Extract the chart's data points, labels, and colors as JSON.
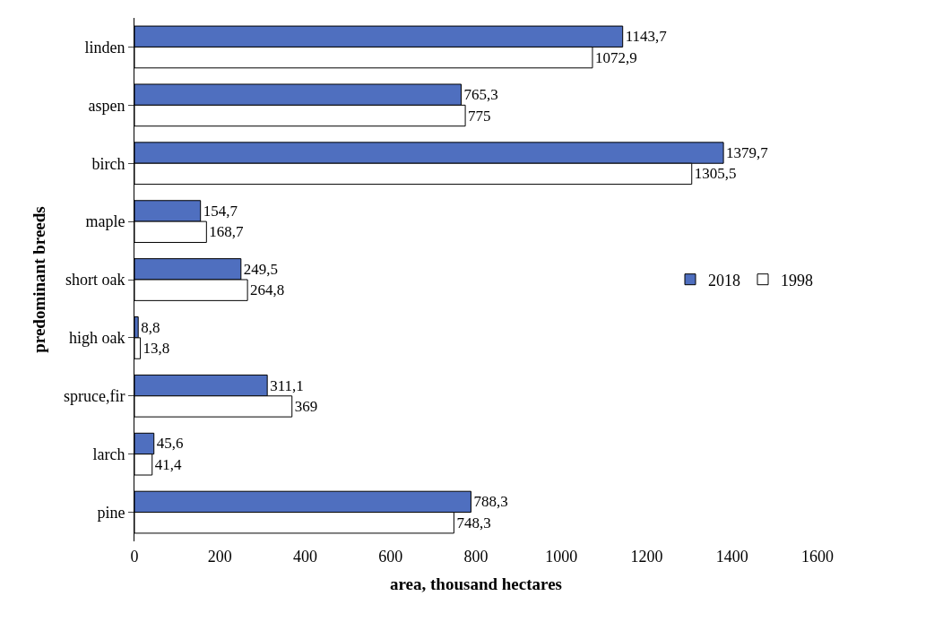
{
  "chart_data": {
    "type": "bar",
    "orientation": "horizontal",
    "xlabel": "area, thousand hectares",
    "ylabel": "predominant breeds",
    "categories": [
      "linden",
      "aspen",
      "birch",
      "maple",
      "short oak",
      "high oak",
      "spruce,fir",
      "larch",
      "pine"
    ],
    "series": [
      {
        "name": "2018",
        "color": "#4f6fbf",
        "values": [
          1143.7,
          765.3,
          1379.7,
          154.7,
          249.5,
          8.8,
          311.1,
          45.6,
          788.3
        ],
        "value_labels": [
          "1143,7",
          "765,3",
          "1379,7",
          "154,7",
          "249,5",
          "8,8",
          "311,1",
          "45,6",
          "788,3"
        ]
      },
      {
        "name": "1998",
        "color": "#ffffff",
        "values": [
          1072.9,
          775,
          1305.5,
          168.7,
          264.8,
          13.8,
          369,
          41.4,
          748.3
        ],
        "value_labels": [
          "1072,9",
          "775",
          "1305,5",
          "168,7",
          "264,8",
          "13,8",
          "369",
          "41,4",
          "748,3"
        ]
      }
    ],
    "xlim": [
      0,
      1600
    ],
    "xticks": [
      0,
      200,
      400,
      600,
      800,
      1000,
      1200,
      1400,
      1600
    ],
    "legend": "right"
  }
}
